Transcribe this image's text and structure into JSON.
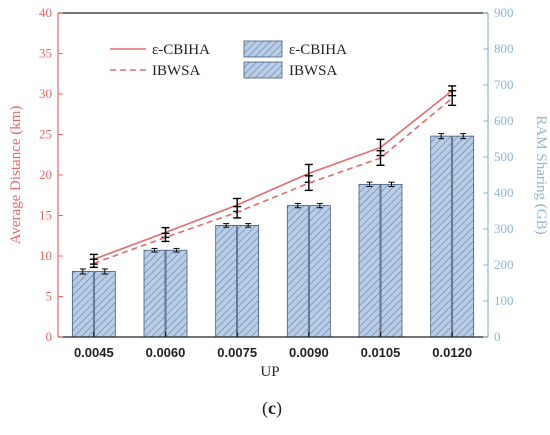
{
  "panel_label_open": "(",
  "panel_label": "c",
  "panel_label_close": ")",
  "colors": {
    "line": "#e46b6b",
    "bar_fill": "#b9cde6",
    "bar_hatch": "#5f7fa8",
    "bar_edge": "#445a78",
    "right_axis": "#8fb6d6",
    "left_axis": "#e46b6b",
    "error_bar": "#000000"
  },
  "chart_data": {
    "type": "bar",
    "categories": [
      "0.0045",
      "0.0060",
      "0.0075",
      "0.0090",
      "0.0105",
      "0.0120"
    ],
    "xlabel": "UP",
    "ylabel_left": "Average Distance (km)",
    "ylabel_right": "RAM Sharing (GB)",
    "ylim_left": [
      0,
      40
    ],
    "ylim_right": [
      0,
      900
    ],
    "yticks_left": [
      0,
      5,
      10,
      15,
      20,
      25,
      30,
      35,
      40
    ],
    "yticks_right": [
      0,
      100,
      200,
      300,
      400,
      500,
      600,
      700,
      800,
      900
    ],
    "legend_position": "top-left",
    "line_series": [
      {
        "name": "ε-CBIHA",
        "style": "solid",
        "values": [
          9.6,
          12.9,
          16.3,
          20.2,
          23.4,
          30.4
        ],
        "errors": [
          0.6,
          0.6,
          0.8,
          1.1,
          1.0,
          0.6
        ]
      },
      {
        "name": "IBWSA",
        "style": "dashed",
        "values": [
          9.1,
          12.3,
          15.4,
          19.0,
          22.1,
          29.5
        ],
        "errors": [
          0.5,
          0.5,
          0.7,
          0.9,
          0.9,
          0.9
        ]
      }
    ],
    "bar_series": [
      {
        "name": "ε-CBIHA",
        "values": [
          182,
          241,
          310,
          365,
          424,
          558
        ],
        "errors": [
          7,
          5,
          5,
          6,
          6,
          7
        ]
      },
      {
        "name": "IBWSA",
        "values": [
          182,
          241,
          310,
          365,
          424,
          558
        ],
        "errors": [
          7,
          5,
          5,
          6,
          6,
          7
        ]
      }
    ]
  }
}
